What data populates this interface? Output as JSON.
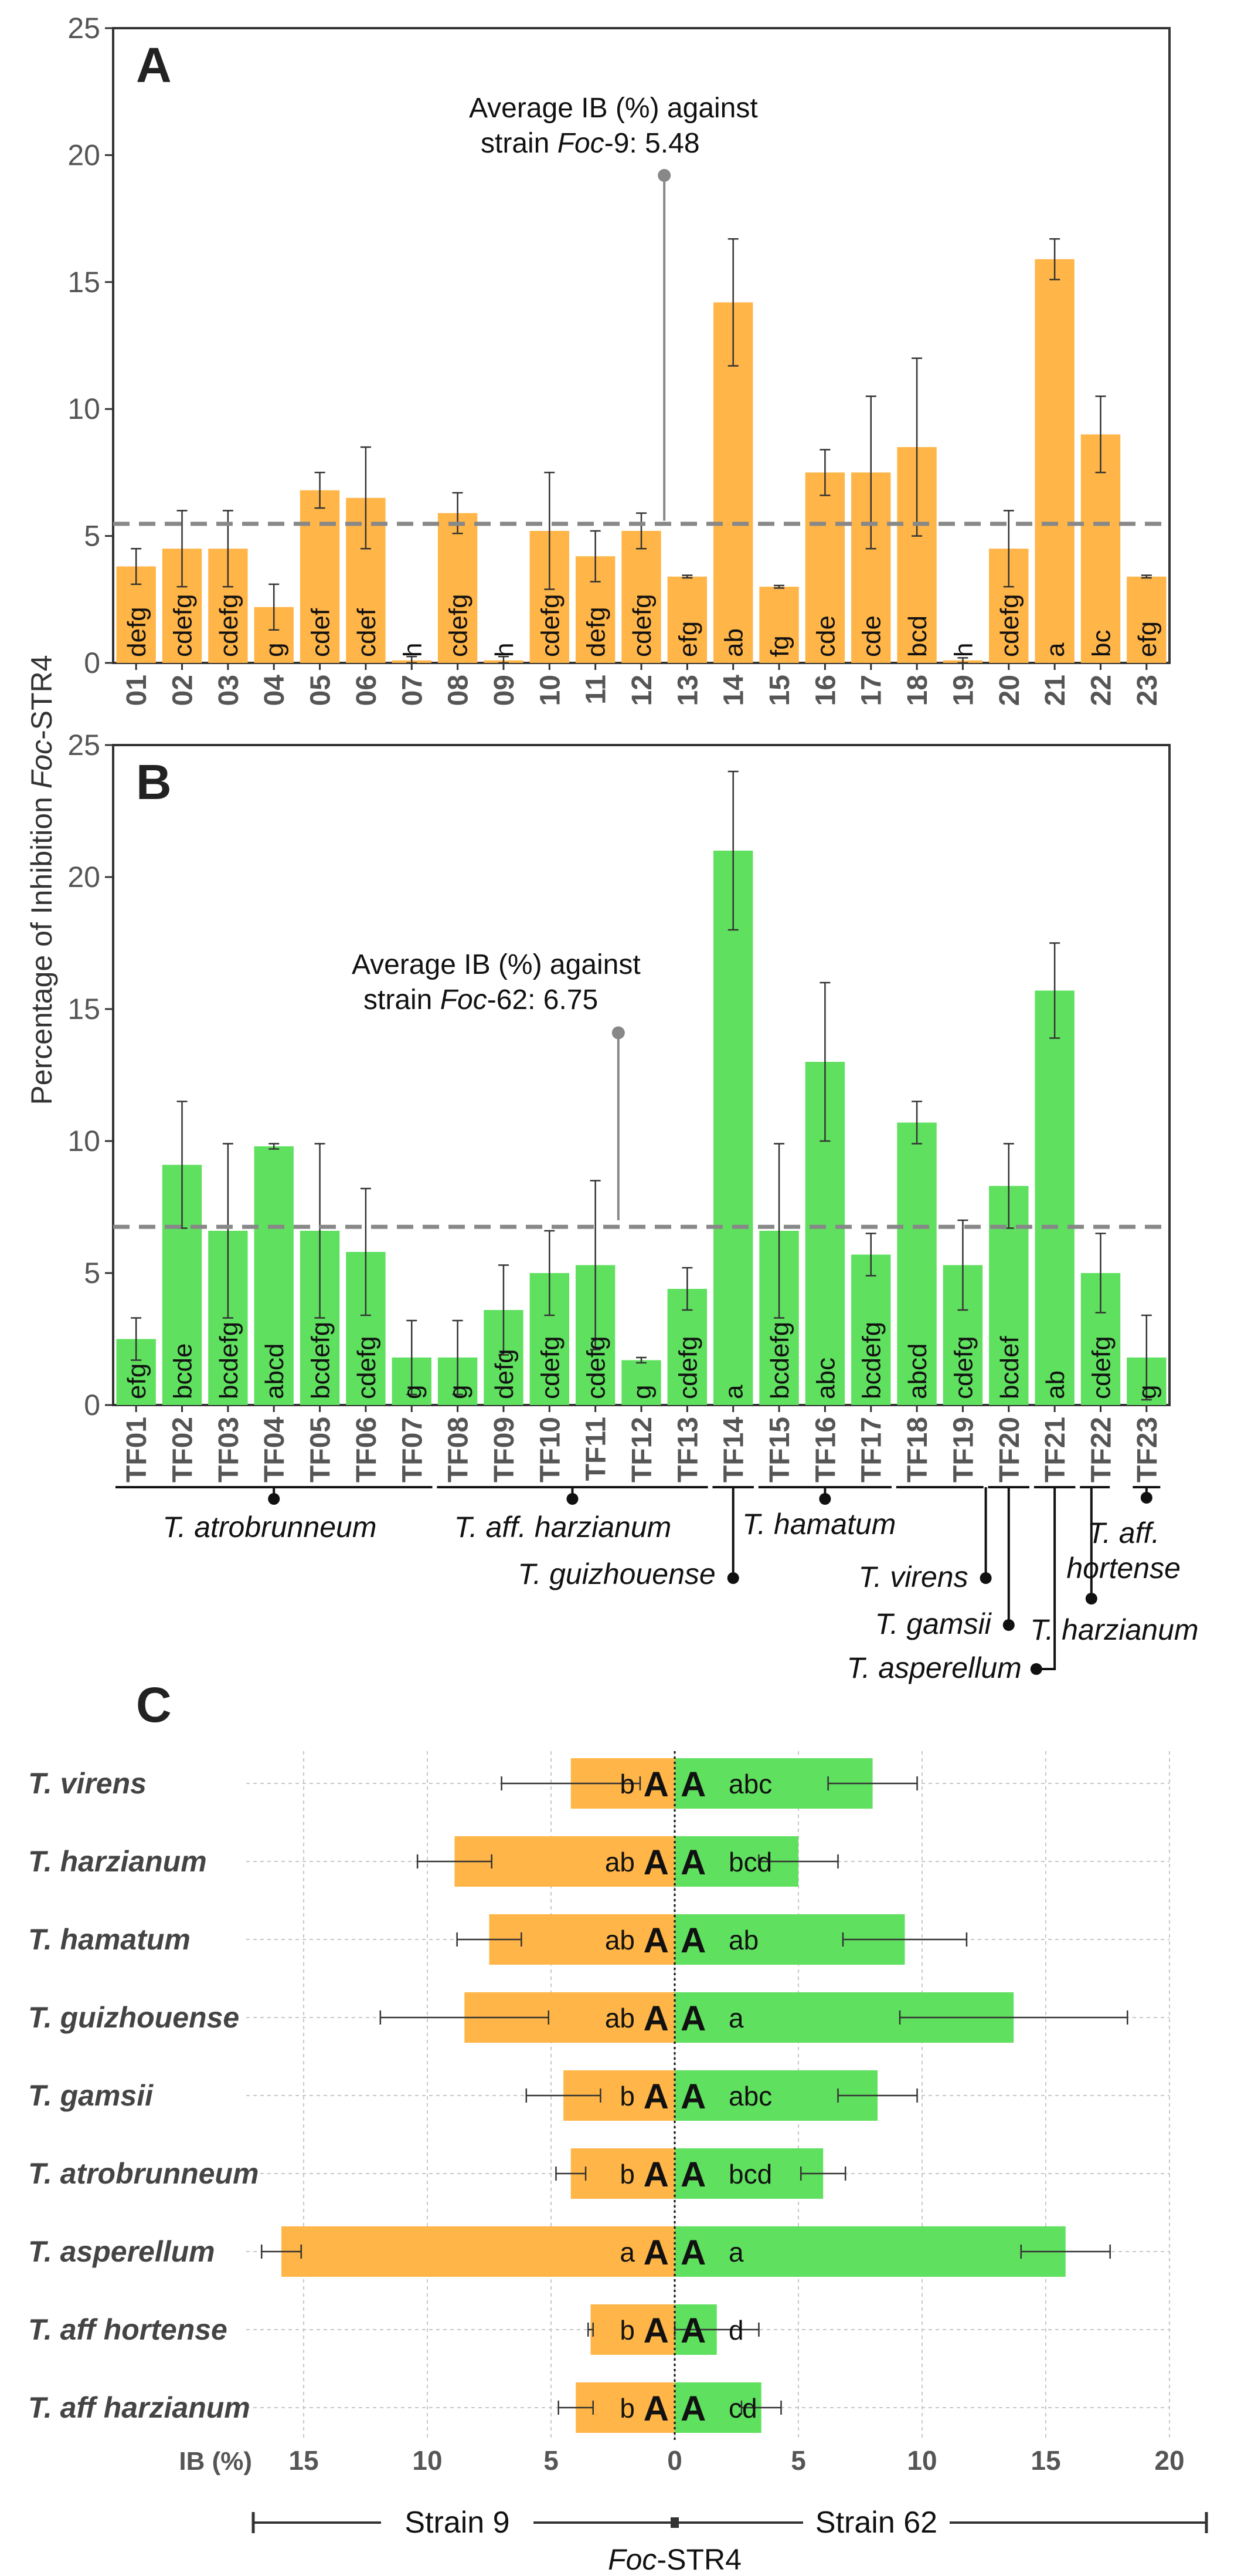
{
  "colors": {
    "orange": "#FFB547",
    "green": "#5FE05F",
    "grid": "#c8c8c8",
    "axis": "#333333",
    "dashed": "#888888",
    "stem": "#888888"
  },
  "y_axis_label_prefix": "Percentage of Inhibition ",
  "y_axis_label_italic": "Foc",
  "y_axis_label_suffix": "-STR4",
  "chart_data": [
    {
      "panel": "A",
      "type": "bar",
      "ylim": [
        0,
        25
      ],
      "yticks": [
        0,
        5,
        10,
        15,
        20,
        25
      ],
      "categories": [
        "01",
        "02",
        "03",
        "04",
        "05",
        "06",
        "07",
        "08",
        "09",
        "10",
        "11",
        "12",
        "13",
        "14",
        "15",
        "16",
        "17",
        "18",
        "19",
        "20",
        "21",
        "22",
        "23"
      ],
      "values": [
        3.8,
        4.5,
        4.5,
        2.2,
        6.8,
        6.5,
        0.1,
        5.9,
        0.1,
        5.2,
        4.2,
        5.2,
        3.4,
        14.2,
        3.0,
        7.5,
        7.5,
        8.5,
        0.1,
        4.5,
        15.9,
        9.0,
        3.4
      ],
      "errors": [
        0.7,
        1.5,
        1.5,
        0.9,
        0.7,
        2.0,
        0.15,
        0.8,
        0.15,
        2.3,
        1.0,
        0.7,
        0.05,
        2.5,
        0.05,
        0.9,
        3.0,
        3.5,
        0.1,
        1.5,
        0.8,
        1.5,
        0.05
      ],
      "letters": [
        "defg",
        "cdefg",
        "cdefg",
        "g",
        "cdef",
        "cdef",
        "h",
        "cdefg",
        "h",
        "cdefg",
        "defg",
        "cdefg",
        "efg",
        "ab",
        "fg",
        "cde",
        "cde",
        "bcd",
        "h",
        "cdefg",
        "a",
        "bc",
        "efg"
      ],
      "average": 5.48,
      "avg_label_line1": "Average IB (%) against",
      "avg_label_line2_prefix": "strain ",
      "avg_label_italic": "Foc",
      "avg_label_line2_suffix": "-9: 5.48",
      "stem_x_index": 12,
      "stem_top": 19.2,
      "stem_bottom": 5.6
    },
    {
      "panel": "B",
      "type": "bar",
      "ylim": [
        0,
        25
      ],
      "yticks": [
        0,
        5,
        10,
        15,
        20,
        25
      ],
      "categories": [
        "TF01",
        "TF02",
        "TF03",
        "TF04",
        "TF05",
        "TF06",
        "TF07",
        "TF08",
        "TF09",
        "TF10",
        "TF11",
        "TF12",
        "TF13",
        "TF14",
        "TF15",
        "TF16",
        "TF17",
        "TF18",
        "TF19",
        "TF20",
        "TF21",
        "TF22",
        "TF23"
      ],
      "values": [
        2.5,
        9.1,
        6.6,
        9.8,
        6.6,
        5.8,
        1.8,
        1.8,
        3.6,
        5.0,
        5.3,
        1.7,
        4.4,
        21.0,
        6.6,
        13.0,
        5.7,
        10.7,
        5.3,
        8.3,
        15.7,
        5.0,
        1.8
      ],
      "errors": [
        0.8,
        2.4,
        3.3,
        0.1,
        3.3,
        2.4,
        1.4,
        1.4,
        1.7,
        1.6,
        3.2,
        0.1,
        0.8,
        3.0,
        3.3,
        3.0,
        0.8,
        0.8,
        1.7,
        1.6,
        1.8,
        1.5,
        1.6
      ],
      "letters": [
        "efg",
        "bcde",
        "bcdefg",
        "abcd",
        "bcdefg",
        "cdefg",
        "g",
        "g",
        "defg",
        "cdefg",
        "cdefg",
        "g",
        "cdefg",
        "a",
        "bcdefg",
        "abc",
        "bcdefg",
        "abcd",
        "cdefg",
        "bcdef",
        "ab",
        "cdefg",
        "g"
      ],
      "average": 6.75,
      "avg_label_line1": "Average IB (%) against",
      "avg_label_line2_prefix": "strain ",
      "avg_label_italic": "Foc",
      "avg_label_line2_suffix": "-62: 6.75",
      "stem_x_index": 11,
      "stem_top": 14.1,
      "stem_bottom": 7.0
    },
    {
      "panel": "C",
      "type": "bar",
      "orientation": "horizontal-diverging",
      "xlim": [
        -16.3,
        20
      ],
      "xticks_left": [
        15,
        10,
        5
      ],
      "xticks_right": [
        0,
        5,
        10,
        15,
        20
      ],
      "xlabel_prefix": "IB (%)",
      "species": [
        "T. virens",
        "T. harzianum",
        "T. hamatum",
        "T. guizhouense",
        "T. gamsii",
        "T. atrobrunneum",
        "T. asperellum",
        "T. aff hortense",
        "T. aff harzianum"
      ],
      "strain9_values": [
        4.2,
        8.9,
        7.5,
        8.5,
        4.5,
        4.2,
        15.9,
        3.4,
        4.0
      ],
      "strain9_errors": [
        2.8,
        1.5,
        1.3,
        3.4,
        1.5,
        0.6,
        0.8,
        0.1,
        0.7
      ],
      "strain9_letters": [
        "b",
        "ab",
        "ab",
        "ab",
        "b",
        "b",
        "a",
        "b",
        "b"
      ],
      "strain62_values": [
        8.0,
        5.0,
        9.3,
        13.7,
        8.2,
        6.0,
        15.8,
        1.7,
        3.5
      ],
      "strain62_errors": [
        1.8,
        1.6,
        2.5,
        4.6,
        1.6,
        0.9,
        1.8,
        1.7,
        0.8
      ],
      "strain62_letters": [
        "abc",
        "bcd",
        "ab",
        "a",
        "abc",
        "bcd",
        "a",
        "d",
        "cd"
      ],
      "group_letter": "A",
      "strain9_label": "Strain 9",
      "strain62_label": "Strain 62",
      "center_label_italic": "Foc",
      "center_label_suffix": "-STR4"
    }
  ],
  "groups": [
    {
      "name": "T. atrobrunneum"
    },
    {
      "name": "T. aff. harzianum"
    },
    {
      "name": "T. guizhouense"
    },
    {
      "name": "T. hamatum"
    },
    {
      "name": "T. virens"
    },
    {
      "name": "T. gamsii"
    },
    {
      "name": "T. asperellum"
    },
    {
      "name": "T. harzianum"
    },
    {
      "name_line1": "T. aff.",
      "name_line2": "hortense"
    }
  ]
}
